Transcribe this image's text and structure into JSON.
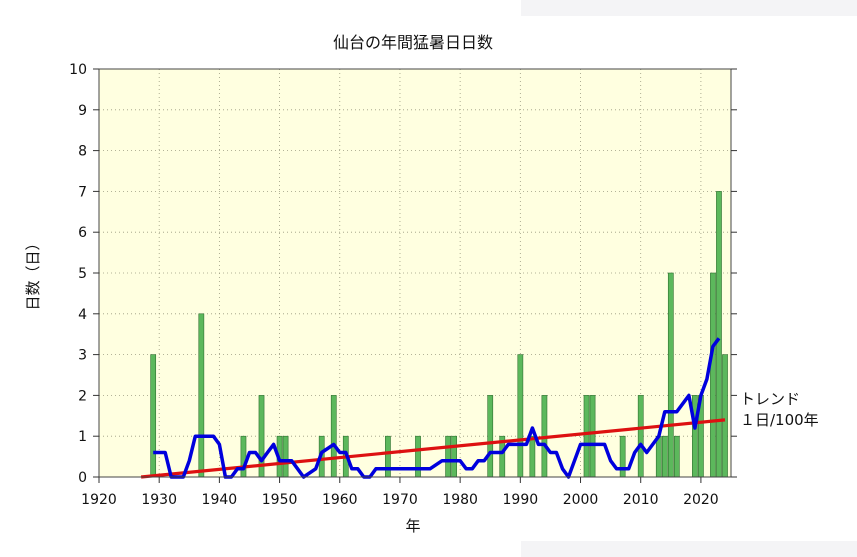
{
  "chart_data": {
    "type": "bar",
    "title": "仙台の年間猛暑日日数",
    "xlabel": "年",
    "ylabel": "日数（日）",
    "xlim": [
      1920,
      2025
    ],
    "ylim": [
      0,
      10
    ],
    "xticks": [
      1920,
      1930,
      1940,
      1950,
      1960,
      1970,
      1980,
      1990,
      2000,
      2010,
      2020
    ],
    "yticks": [
      0,
      1,
      2,
      3,
      4,
      5,
      6,
      7,
      8,
      9,
      10
    ],
    "grid": true,
    "background_color": "#ffffe0",
    "bar_color": "#5cb85c",
    "moving_avg_color": "#0000dd",
    "trend_color": "#dd1111",
    "series": [
      {
        "kind": "bar",
        "x": [
          1929,
          1937,
          1944,
          1947,
          1950,
          1951,
          1957,
          1959,
          1961,
          1968,
          1973,
          1978,
          1979,
          1985,
          1987,
          1990,
          1992,
          1994,
          2001,
          2002,
          2007,
          2010,
          2013,
          2014,
          2015,
          2016,
          2019,
          2020,
          2022,
          2023,
          2024
        ],
        "values": [
          3,
          4,
          1,
          2,
          1,
          1,
          1,
          2,
          1,
          1,
          1,
          1,
          1,
          2,
          1,
          3,
          1,
          2,
          2,
          2,
          1,
          2,
          1,
          1,
          5,
          1,
          2,
          2,
          5,
          7,
          3
        ]
      },
      {
        "kind": "line",
        "points": [
          [
            1929,
            0.6
          ],
          [
            1931,
            0.6
          ],
          [
            1932,
            0
          ],
          [
            1934,
            0
          ],
          [
            1935,
            0.4
          ],
          [
            1936,
            1
          ],
          [
            1939,
            1
          ],
          [
            1940,
            0.8
          ],
          [
            1941,
            0
          ],
          [
            1942,
            0
          ],
          [
            1943,
            0.2
          ],
          [
            1944,
            0.2
          ],
          [
            1945,
            0.6
          ],
          [
            1946,
            0.6
          ],
          [
            1947,
            0.4
          ],
          [
            1948,
            0.6
          ],
          [
            1949,
            0.8
          ],
          [
            1950,
            0.4
          ],
          [
            1952,
            0.4
          ],
          [
            1953,
            0.2
          ],
          [
            1954,
            0
          ],
          [
            1956,
            0.2
          ],
          [
            1957,
            0.6
          ],
          [
            1959,
            0.8
          ],
          [
            1960,
            0.6
          ],
          [
            1961,
            0.6
          ],
          [
            1962,
            0.2
          ],
          [
            1963,
            0.2
          ],
          [
            1964,
            0
          ],
          [
            1965,
            0
          ],
          [
            1966,
            0.2
          ],
          [
            1975,
            0.2
          ],
          [
            1977,
            0.4
          ],
          [
            1980,
            0.4
          ],
          [
            1981,
            0.2
          ],
          [
            1982,
            0.2
          ],
          [
            1983,
            0.4
          ],
          [
            1984,
            0.4
          ],
          [
            1985,
            0.6
          ],
          [
            1987,
            0.6
          ],
          [
            1988,
            0.8
          ],
          [
            1991,
            0.8
          ],
          [
            1992,
            1.2
          ],
          [
            1993,
            0.8
          ],
          [
            1994,
            0.8
          ],
          [
            1995,
            0.6
          ],
          [
            1996,
            0.6
          ],
          [
            1997,
            0.2
          ],
          [
            1998,
            0
          ],
          [
            1999,
            0.4
          ],
          [
            2000,
            0.8
          ],
          [
            2004,
            0.8
          ],
          [
            2005,
            0.4
          ],
          [
            2006,
            0.2
          ],
          [
            2008,
            0.2
          ],
          [
            2009,
            0.6
          ],
          [
            2010,
            0.8
          ],
          [
            2011,
            0.6
          ],
          [
            2013,
            1
          ],
          [
            2014,
            1.6
          ],
          [
            2016,
            1.6
          ],
          [
            2018,
            2
          ],
          [
            2019,
            1.2
          ],
          [
            2020,
            2
          ],
          [
            2021,
            2.4
          ],
          [
            2022,
            3.2
          ],
          [
            2023,
            3.4
          ]
        ]
      },
      {
        "kind": "trend",
        "points": [
          [
            1927,
            0
          ],
          [
            2024,
            1.4
          ]
        ]
      }
    ],
    "trend_label": [
      "トレンド",
      "１日/100年"
    ]
  }
}
